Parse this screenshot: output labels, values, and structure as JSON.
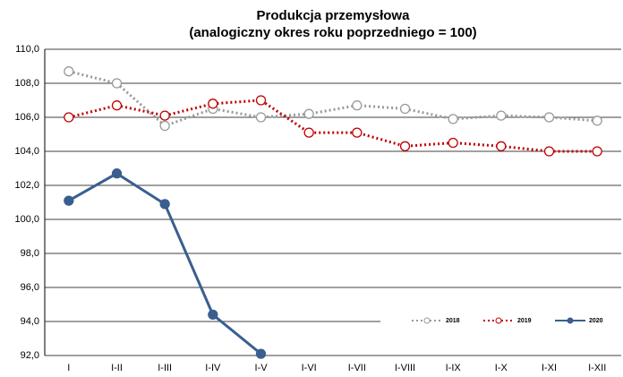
{
  "chart_data": {
    "type": "line",
    "title": "Produkcja przemysłowa",
    "subtitle": "(analogiczny okres roku poprzedniego = 100)",
    "categories": [
      "I",
      "I-II",
      "I-III",
      "I-IV",
      "I-V",
      "I-VI",
      "I-VII",
      "I-VIII",
      "I-IX",
      "I-X",
      "I-XI",
      "I-XII"
    ],
    "series": [
      {
        "name": "2018",
        "color": "#999999",
        "dash": "dotted",
        "marker": "open",
        "values": [
          108.7,
          108.0,
          105.5,
          106.5,
          106.0,
          106.2,
          106.7,
          106.5,
          105.9,
          106.1,
          106.0,
          105.8
        ]
      },
      {
        "name": "2019",
        "color": "#c00000",
        "dash": "dotted",
        "marker": "open",
        "values": [
          106.0,
          106.7,
          106.1,
          106.8,
          107.0,
          105.1,
          105.1,
          104.3,
          104.5,
          104.3,
          104.0,
          104.0
        ]
      },
      {
        "name": "2020",
        "color": "#3a5f8f",
        "dash": "solid",
        "marker": "filled",
        "values": [
          101.1,
          102.7,
          100.9,
          94.4,
          92.1,
          null,
          null,
          null,
          null,
          null,
          null,
          null
        ]
      }
    ],
    "ylim": [
      92,
      110
    ],
    "yticks": [
      {
        "value": 92,
        "label": "92,0"
      },
      {
        "value": 94,
        "label": "94,0"
      },
      {
        "value": 96,
        "label": "96,0"
      },
      {
        "value": 98,
        "label": "98,0"
      },
      {
        "value": 100,
        "label": "100,0"
      },
      {
        "value": 102,
        "label": "102,0"
      },
      {
        "value": 104,
        "label": "104,0"
      },
      {
        "value": 106,
        "label": "106,0"
      },
      {
        "value": 108,
        "label": "108,0"
      },
      {
        "value": 110,
        "label": "110,0"
      }
    ],
    "grid": true,
    "legend": "bottom-right"
  }
}
